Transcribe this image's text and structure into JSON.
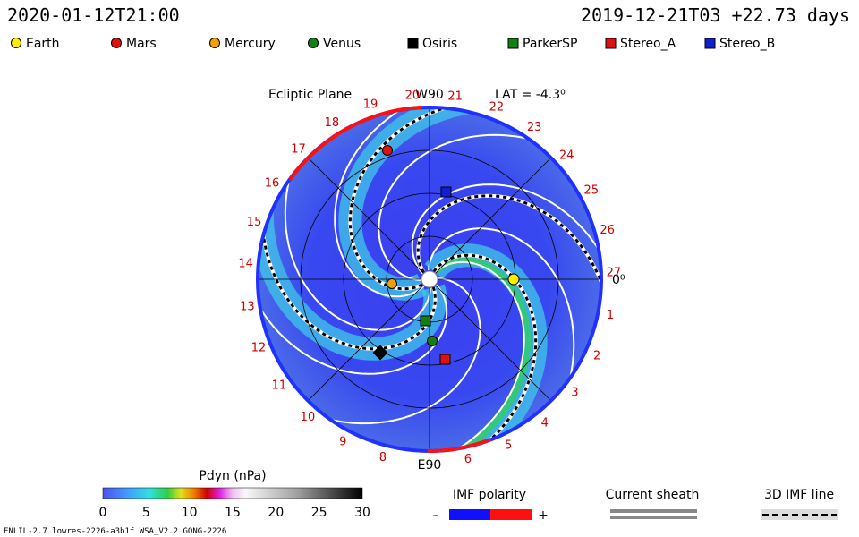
{
  "header": {
    "time": "2020-01-12T21:00",
    "elapsed": "2019-12-21T03 +22.73 days"
  },
  "legend": [
    "Earth",
    "Mars",
    "Mercury",
    "Venus",
    "Osiris",
    "ParkerSP",
    "Stereo_A",
    "Stereo_B"
  ],
  "plot": {
    "title": "Ecliptic Plane",
    "top": "W90",
    "lat": "LAT = -4.3⁰",
    "bottom": "E90",
    "zero": "0⁰",
    "longitudes": [
      "21",
      "22",
      "23",
      "24",
      "25",
      "26",
      "27",
      "1",
      "2",
      "3",
      "4",
      "5",
      "6",
      "8",
      "9",
      "10",
      "11",
      "12",
      "13",
      "14",
      "15",
      "16",
      "17",
      "18",
      "19",
      "20"
    ]
  },
  "colorbar": {
    "label": "Pdyn (nPa)",
    "ticks": [
      0,
      5,
      10,
      15,
      20,
      25,
      30
    ]
  },
  "imf": {
    "label": "IMF polarity",
    "minus": "–",
    "plus": "+"
  },
  "sheath": "Current sheath",
  "imf_line": "3D IMF line",
  "footer": "ENLIL-2.7 lowres-2226-a3b1f WSA_V2.2 GONG-2226"
}
